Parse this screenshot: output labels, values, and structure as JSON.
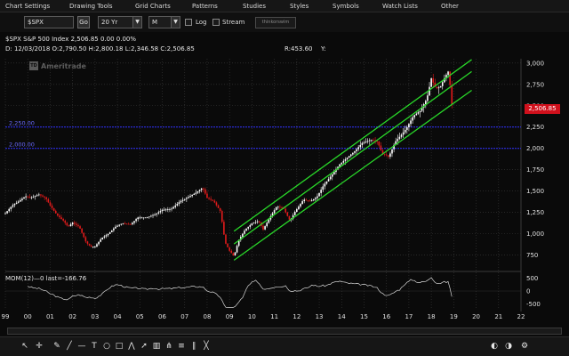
{
  "menu": [
    "Chart Settings",
    "Drawing Tools",
    "Grid Charts",
    "Patterns",
    "Studies",
    "Styles",
    "Symbols",
    "Watch Lists",
    "Other"
  ],
  "toolbar": {
    "symbol": "$SPX",
    "go_label": "Go",
    "period": "20 Yr",
    "interval": "M",
    "log_label": "Log",
    "log_checked": false,
    "stream_label": "Stream",
    "stream_checked": false,
    "brand_label": "thinkorswim"
  },
  "header": {
    "title_line": "$SPX S&P 500 Index  2,506.85  0.00  0.00%",
    "ohlc_line": "D: 12/03/2018  O:2,790.50  H:2,800.18  L:2,346.58  C:2,506.85",
    "r_value": "R:453.60",
    "y_label": "Y:",
    "logo_text": "Ameritrade",
    "logo_mark": "TD"
  },
  "price_badge": "2,506.85",
  "levels": [
    {
      "label": "2,250.00",
      "value": 2250
    },
    {
      "label": "2,000.00",
      "value": 2000
    }
  ],
  "mom_label": "MOM(12)—0 last=-166.76",
  "colors": {
    "up": "#ffffff",
    "down": "#e21b1b",
    "channel": "#29d829",
    "level": "#3030ff",
    "badge": "#d0101c",
    "grid": "#3a3a3a",
    "mom": "#d8d8d8"
  },
  "chart_data": {
    "type": "candlestick",
    "y_ticks": [
      "750",
      "1,000",
      "1,250",
      "1,500",
      "1,750",
      "2,000",
      "2,250",
      "2,500",
      "2,750",
      "3,000"
    ],
    "y_values": [
      750,
      1000,
      1250,
      1500,
      1750,
      2000,
      2250,
      2500,
      2750,
      3000
    ],
    "ylim": [
      600,
      3050
    ],
    "x_labels": [
      "99",
      "00",
      "01",
      "02",
      "03",
      "04",
      "05",
      "06",
      "07",
      "08",
      "09",
      "10",
      "11",
      "12",
      "13",
      "14",
      "15",
      "16",
      "17",
      "18",
      "19",
      "20",
      "21",
      "22"
    ],
    "xlim": [
      1999,
      2022
    ],
    "close_points": [
      [
        1999.0,
        1240
      ],
      [
        1999.3,
        1330
      ],
      [
        1999.6,
        1380
      ],
      [
        1999.9,
        1440
      ],
      [
        2000.1,
        1420
      ],
      [
        2000.5,
        1460
      ],
      [
        2000.8,
        1420
      ],
      [
        2001.0,
        1330
      ],
      [
        2001.3,
        1220
      ],
      [
        2001.6,
        1150
      ],
      [
        2001.8,
        1080
      ],
      [
        2002.0,
        1130
      ],
      [
        2002.3,
        1080
      ],
      [
        2002.6,
        900
      ],
      [
        2002.8,
        850
      ],
      [
        2003.0,
        850
      ],
      [
        2003.3,
        950
      ],
      [
        2003.6,
        1000
      ],
      [
        2003.9,
        1080
      ],
      [
        2004.2,
        1120
      ],
      [
        2004.6,
        1110
      ],
      [
        2004.9,
        1190
      ],
      [
        2005.3,
        1190
      ],
      [
        2005.7,
        1230
      ],
      [
        2006.0,
        1280
      ],
      [
        2006.4,
        1290
      ],
      [
        2006.8,
        1380
      ],
      [
        2007.1,
        1420
      ],
      [
        2007.5,
        1480
      ],
      [
        2007.8,
        1540
      ],
      [
        2008.0,
        1420
      ],
      [
        2008.3,
        1380
      ],
      [
        2008.6,
        1260
      ],
      [
        2008.8,
        900
      ],
      [
        2009.0,
        800
      ],
      [
        2009.2,
        735
      ],
      [
        2009.4,
        920
      ],
      [
        2009.7,
        1050
      ],
      [
        2010.0,
        1120
      ],
      [
        2010.3,
        1150
      ],
      [
        2010.5,
        1050
      ],
      [
        2010.8,
        1190
      ],
      [
        2011.1,
        1320
      ],
      [
        2011.4,
        1300
      ],
      [
        2011.7,
        1150
      ],
      [
        2011.9,
        1250
      ],
      [
        2012.3,
        1400
      ],
      [
        2012.6,
        1380
      ],
      [
        2012.9,
        1430
      ],
      [
        2013.2,
        1570
      ],
      [
        2013.6,
        1700
      ],
      [
        2013.9,
        1810
      ],
      [
        2014.2,
        1880
      ],
      [
        2014.6,
        1970
      ],
      [
        2014.9,
        2060
      ],
      [
        2015.3,
        2100
      ],
      [
        2015.6,
        2080
      ],
      [
        2015.8,
        1940
      ],
      [
        2016.0,
        1920
      ],
      [
        2016.1,
        1900
      ],
      [
        2016.4,
        2080
      ],
      [
        2016.7,
        2170
      ],
      [
        2016.9,
        2240
      ],
      [
        2017.2,
        2380
      ],
      [
        2017.5,
        2440
      ],
      [
        2017.8,
        2580
      ],
      [
        2018.0,
        2820
      ],
      [
        2018.2,
        2700
      ],
      [
        2018.4,
        2720
      ],
      [
        2018.6,
        2830
      ],
      [
        2018.75,
        2900
      ],
      [
        2018.85,
        2711
      ],
      [
        2018.92,
        2506
      ]
    ],
    "channel": {
      "upper": [
        [
          2009.2,
          1030
        ],
        [
          2019.8,
          3040
        ]
      ],
      "middle": [
        [
          2009.2,
          880
        ],
        [
          2019.8,
          2900
        ]
      ],
      "lower": [
        [
          2009.2,
          690
        ],
        [
          2019.8,
          2680
        ]
      ]
    },
    "mom": {
      "y_ticks": [
        "500",
        "0",
        "-500"
      ],
      "y_values": [
        500,
        0,
        -500
      ],
      "ylim": [
        -650,
        650
      ],
      "last": -166.76
    }
  }
}
